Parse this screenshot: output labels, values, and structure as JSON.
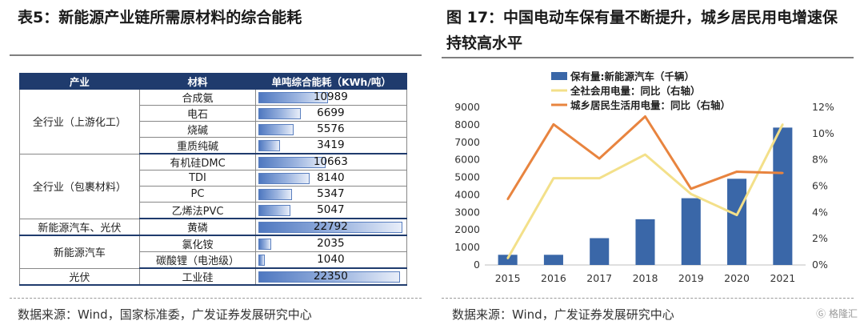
{
  "left": {
    "title": "表5：新能源产业链所需原材料的综合能耗",
    "source": "数据来源：Wind，国家标准委，广发证券发展研究中心",
    "table": {
      "headers": [
        "产业",
        "材料",
        "单吨综合能耗（KWh/吨）"
      ],
      "groups": [
        {
          "industry": "全行业（上游化工）",
          "rows": [
            {
              "material": "合成氨",
              "value": 10989
            },
            {
              "material": "电石",
              "value": 6699
            },
            {
              "material": "烧碱",
              "value": 5576
            },
            {
              "material": "重质纯碱",
              "value": 3419
            }
          ]
        },
        {
          "industry": "全行业（包裹材料）",
          "rows": [
            {
              "material": "有机硅DMC",
              "value": 10663
            },
            {
              "material": "TDI",
              "value": 8140
            },
            {
              "material": "PC",
              "value": 5347
            },
            {
              "material": "乙烯法PVC",
              "value": 5047
            }
          ]
        },
        {
          "industry": "新能源汽车、光伏",
          "rows": [
            {
              "material": "黄磷",
              "value": 22792
            }
          ]
        },
        {
          "industry": "新能源汽车",
          "rows": [
            {
              "material": "氯化铵",
              "value": 2035
            },
            {
              "material": "碳酸锂（电池级）",
              "value": 1040
            }
          ]
        },
        {
          "industry": "光伏",
          "rows": [
            {
              "material": "工业硅",
              "value": 22350
            }
          ]
        }
      ],
      "bar_max": 22792
    }
  },
  "right": {
    "title": "图 17：中国电动车保有量不断提升，城乡居民用电增速保持较高水平",
    "source": "数据来源：Wind，广发证券发展研究中心",
    "watermark": "格隆汇"
  },
  "chart_data": {
    "type": "bar",
    "categories": [
      "2015",
      "2016",
      "2017",
      "2018",
      "2019",
      "2020",
      "2021"
    ],
    "series": [
      {
        "name": "保有量:新能源汽车（千辆）",
        "type": "bar",
        "axis": "left",
        "color": "#3a67a8",
        "values": [
          580,
          580,
          1530,
          2610,
          3810,
          4920,
          7840
        ]
      },
      {
        "name": "全社会用电量：同比（右轴）",
        "type": "line",
        "axis": "right",
        "color": "#f3e08a",
        "values": [
          0.5,
          6.6,
          6.6,
          8.4,
          5.4,
          3.8,
          10.7
        ]
      },
      {
        "name": "城乡居民生活用电量：同比（右轴）",
        "type": "line",
        "axis": "right",
        "color": "#e8843f",
        "values": [
          5.0,
          10.7,
          8.1,
          11.3,
          5.8,
          7.1,
          7.0
        ]
      }
    ],
    "ylim": [
      0,
      9000
    ],
    "yticks": [
      "0",
      "1000",
      "2000",
      "3000",
      "4000",
      "5000",
      "6000",
      "7000",
      "8000",
      "9000"
    ],
    "y2lim": [
      0,
      12
    ],
    "y2ticks": [
      "0%",
      "2%",
      "4%",
      "6%",
      "8%",
      "10%",
      "12%"
    ],
    "legend_position": "top",
    "grid": false
  }
}
